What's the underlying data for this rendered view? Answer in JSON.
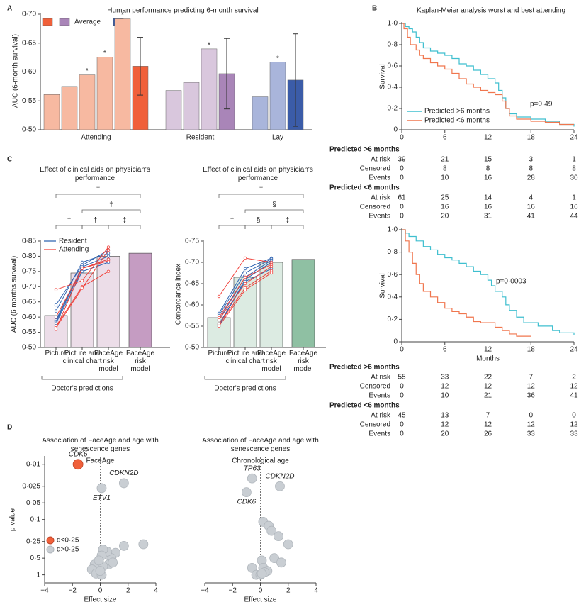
{
  "chart_data": [
    {
      "type": "grouped_bar",
      "panel": "A",
      "title": "Human performance predicting 6-month survival",
      "y_label": "AUC (6-month survival)",
      "ylim": [
        0.5,
        0.7
      ],
      "yticks": [
        {
          "value": 0.5,
          "label": "0·50"
        },
        {
          "value": 0.55,
          "label": "0·55"
        },
        {
          "value": 0.6,
          "label": "0·60"
        },
        {
          "value": 0.65,
          "label": "0·65"
        },
        {
          "value": 0.7,
          "label": "0·70"
        }
      ],
      "legend": {
        "colors": [
          "#f0603a",
          "#a985b8",
          "#3b5ca8"
        ],
        "label": "Average"
      },
      "groups": [
        {
          "name": "Attending",
          "values": [
            0.561,
            0.575,
            0.595,
            0.626,
            0.692,
            0.61
          ],
          "colors": [
            "#f7b9a1",
            "#f7b9a1",
            "#f7b9a1",
            "#f7b9a1",
            "#f7b9a1",
            "#f0603a"
          ],
          "stars": [
            null,
            null,
            "*",
            "*",
            "*",
            null
          ],
          "errors": [
            null,
            null,
            null,
            null,
            null,
            0.05
          ]
        },
        {
          "name": "Resident",
          "values": [
            0.568,
            0.582,
            0.64,
            0.597
          ],
          "colors": [
            "#d9c7dd",
            "#d9c7dd",
            "#d9c7dd",
            "#a985b8"
          ],
          "stars": [
            null,
            null,
            "*",
            null
          ],
          "errors": [
            null,
            null,
            null,
            0.061
          ]
        },
        {
          "name": "Lay",
          "values": [
            0.557,
            0.617,
            0.586
          ],
          "colors": [
            "#a9b5db",
            "#a9b5db",
            "#3b5ca8"
          ],
          "stars": [
            null,
            "*",
            null
          ],
          "errors": [
            null,
            null,
            0.08
          ]
        }
      ]
    },
    {
      "type": "step",
      "panel": "B",
      "title": "Kaplan-Meier analysis worst and best attending",
      "y_label": "Survival",
      "annotation": "p=0·49",
      "legend": "lower left",
      "xlim": [
        0,
        24
      ],
      "xticks": [
        0,
        6,
        12,
        18,
        24
      ],
      "ylim": [
        0,
        1
      ],
      "yticks": [
        0,
        {
          "value": 0.2,
          "label": "0·2"
        },
        {
          "value": 0.4,
          "label": "0·4"
        },
        {
          "value": 0.6,
          "label": "0·6"
        },
        {
          "value": 0.8,
          "label": "0·8"
        },
        {
          "value": 1,
          "label": "1·0"
        }
      ],
      "series": [
        {
          "name": "Predicted >6 months",
          "color": "#3fbfcf",
          "x": [
            0,
            0.5,
            1,
            1.5,
            2,
            2.5,
            3,
            4,
            5,
            6,
            7,
            8,
            9,
            10,
            11,
            12,
            13,
            13.5,
            14,
            14.5,
            15,
            16,
            18,
            20,
            22,
            24
          ],
          "values": [
            1,
            0.97,
            0.95,
            0.92,
            0.87,
            0.82,
            0.77,
            0.74,
            0.72,
            0.7,
            0.67,
            0.62,
            0.6,
            0.56,
            0.52,
            0.48,
            0.44,
            0.37,
            0.3,
            0.2,
            0.15,
            0.12,
            0.1,
            0.08,
            0.05,
            0.03
          ]
        },
        {
          "name": "Predicted <6 months",
          "color": "#f0764e",
          "x": [
            0,
            0.3,
            0.8,
            1.2,
            2,
            2.5,
            3,
            4,
            5,
            6,
            7,
            8,
            9,
            10,
            11,
            12,
            13,
            14,
            14.5,
            15,
            16,
            18,
            20,
            22,
            24
          ],
          "values": [
            1,
            0.95,
            0.87,
            0.8,
            0.75,
            0.7,
            0.67,
            0.63,
            0.6,
            0.57,
            0.53,
            0.48,
            0.43,
            0.4,
            0.37,
            0.35,
            0.33,
            0.27,
            0.2,
            0.13,
            0.1,
            0.08,
            0.07,
            0.05,
            0.05
          ]
        }
      ]
    },
    {
      "type": "step",
      "y_label": "Survival",
      "x_label": "Months",
      "annotation": "p=0·0003",
      "xlim": [
        0,
        24
      ],
      "xticks": [
        0,
        6,
        12,
        18,
        24
      ],
      "ylim": [
        0,
        1
      ],
      "yticks": [
        0,
        {
          "value": 0.2,
          "label": "0·2"
        },
        {
          "value": 0.4,
          "label": "0·4"
        },
        {
          "value": 0.6,
          "label": "0·6"
        },
        {
          "value": 0.8,
          "label": "0·8"
        },
        {
          "value": 1,
          "label": "1·0"
        }
      ],
      "series": [
        {
          "color": "#3fbfcf",
          "x": [
            0,
            0.5,
            1,
            2,
            3,
            4,
            5,
            6,
            7,
            8,
            9,
            10,
            11,
            12,
            12.5,
            13,
            14,
            14.5,
            15,
            16,
            17,
            19,
            21,
            22,
            24
          ],
          "values": [
            1,
            0.97,
            0.94,
            0.9,
            0.85,
            0.82,
            0.78,
            0.75,
            0.73,
            0.7,
            0.67,
            0.63,
            0.6,
            0.55,
            0.5,
            0.45,
            0.4,
            0.33,
            0.28,
            0.22,
            0.17,
            0.14,
            0.1,
            0.08,
            0.06
          ]
        },
        {
          "color": "#f0764e",
          "x": [
            0,
            0.5,
            1,
            1.5,
            2,
            2.5,
            3,
            4,
            5,
            6,
            7,
            8,
            9,
            10,
            11,
            13,
            14,
            15,
            16,
            18
          ],
          "values": [
            1,
            0.9,
            0.8,
            0.7,
            0.6,
            0.52,
            0.45,
            0.4,
            0.35,
            0.3,
            0.27,
            0.25,
            0.22,
            0.18,
            0.17,
            0.13,
            0.1,
            0.07,
            0.05,
            0.05
          ]
        }
      ]
    },
    {
      "type": "bar_line",
      "panel": "C",
      "title": "Effect of clinical aids on physician's performance",
      "y_label": "AUC (6 months survival)",
      "group_label": "Doctor's predictions",
      "categories": [
        "Picture",
        "Picture and clinical chart",
        "FaceAge risk model",
        "FaceAge risk model"
      ],
      "values": [
        0.605,
        0.745,
        0.8,
        0.81
      ],
      "colors": [
        "#ecdde8",
        "#ecdde8",
        "#ecdde8",
        "#c59cc2"
      ],
      "brackets": [
        "†",
        "†",
        "‡",
        "†",
        "†"
      ],
      "ylim": [
        0.5,
        0.85
      ],
      "yticks": [
        {
          "value": 0.5,
          "label": "0·50"
        },
        {
          "value": 0.55,
          "label": "0·55"
        },
        {
          "value": 0.6,
          "label": "0·60"
        },
        {
          "value": 0.65,
          "label": "0·65"
        },
        {
          "value": 0.7,
          "label": "0·70"
        },
        {
          "value": 0.75,
          "label": "0·75"
        },
        {
          "value": 0.8,
          "label": "0·80"
        },
        {
          "value": 0.85,
          "label": "0·85"
        }
      ],
      "lines": [
        {
          "name": "Resident",
          "color": "#2f63b0",
          "series": [
            [
              0.64,
              0.77,
              0.82
            ],
            [
              0.62,
              0.78,
              0.81
            ],
            [
              0.59,
              0.765,
              0.8
            ],
            [
              0.585,
              0.76,
              0.79
            ],
            [
              0.58,
              0.75,
              0.78
            ]
          ]
        },
        {
          "name": "Attending",
          "color": "#f0403a",
          "series": [
            [
              0.69,
              0.72,
              0.83
            ],
            [
              0.6,
              0.76,
              0.785
            ],
            [
              0.57,
              0.7,
              0.75
            ],
            [
              0.565,
              0.695,
              0.82
            ],
            [
              0.56,
              0.76,
              0.79
            ]
          ]
        }
      ]
    },
    {
      "type": "bar_line",
      "title": "Effect of clinical aids on physician's performance",
      "y_label": "Concordance index",
      "group_label": "Doctor's predictions",
      "categories": [
        "Picture",
        "Picture and clinical chart",
        "FaceAge risk model",
        "FaceAge risk model"
      ],
      "values": [
        0.57,
        0.665,
        0.7,
        0.707
      ],
      "colors": [
        "#dcebe2",
        "#dcebe2",
        "#dcebe2",
        "#8fc0a3"
      ],
      "brackets": [
        "†",
        "§",
        "‡",
        "§",
        "†"
      ],
      "ylim": [
        0.5,
        0.75
      ],
      "yticks": [
        {
          "value": 0.5,
          "label": "0·50"
        },
        {
          "value": 0.55,
          "label": "0·55"
        },
        {
          "value": 0.6,
          "label": "0·60"
        },
        {
          "value": 0.65,
          "label": "0·65"
        },
        {
          "value": 0.7,
          "label": "0·70"
        },
        {
          "value": 0.75,
          "label": "0·75"
        }
      ],
      "lines": [
        {
          "color": "#2f63b0",
          "series": [
            [
              0.58,
              0.685,
              0.71
            ],
            [
              0.575,
              0.675,
              0.708
            ],
            [
              0.565,
              0.665,
              0.705
            ],
            [
              0.55,
              0.66,
              0.7
            ],
            [
              0.555,
              0.655,
              0.685
            ]
          ]
        },
        {
          "color": "#f0403a",
          "series": [
            [
              0.62,
              0.71,
              0.7
            ],
            [
              0.57,
              0.665,
              0.695
            ],
            [
              0.565,
              0.65,
              0.69
            ],
            [
              0.555,
              0.64,
              0.68
            ],
            [
              0.55,
              0.635,
              0.675
            ]
          ]
        }
      ]
    },
    {
      "type": "scatter",
      "panel": "D",
      "title": "Association of FaceAge and age with senescence genes",
      "subtitle": "FaceAge",
      "x_label": "Effect size",
      "y_label": "p value",
      "log_y": true,
      "vline": 0,
      "xlim": [
        -4,
        4
      ],
      "xticks": [
        {
          "value": -4,
          "label": "−4"
        },
        {
          "value": -2,
          "label": "−2"
        },
        0,
        2,
        4
      ],
      "ylim": [
        1.4,
        0.0075
      ],
      "yticks": [
        {
          "value": 0.01,
          "label": "0·01"
        },
        {
          "value": 0.025,
          "label": "0·025"
        },
        {
          "value": 0.05,
          "label": "0·05"
        },
        {
          "value": 0.1,
          "label": "0·1"
        },
        {
          "value": 0.25,
          "label": "0·25"
        },
        {
          "value": 0.5,
          "label": "0·5"
        },
        1
      ],
      "series": [
        {
          "name": "q<0·25",
          "color": "#f0603a",
          "x": [
            -1.6
          ],
          "values": [
            0.01
          ],
          "labels": [
            "CDK6"
          ]
        },
        {
          "name": "q>0·25",
          "color": "#c9ced3",
          "x": [
            1.7,
            0.1,
            3.1,
            1.7,
            1.1,
            0.8,
            0.5,
            0.2,
            0.6,
            0.9,
            0.1,
            -0.4,
            -0.6,
            -0.3,
            0.1,
            0.2,
            -0.1,
            0.0
          ],
          "values": [
            0.022,
            0.027,
            0.28,
            0.3,
            0.4,
            0.5,
            0.38,
            0.35,
            0.65,
            0.6,
            0.45,
            0.65,
            0.8,
            0.95,
            1.0,
            0.7,
            0.55,
            0.85
          ],
          "labels": [
            "CDKN2D",
            "ETV1",
            null,
            null,
            null,
            null,
            null,
            null,
            null,
            null,
            null,
            null,
            null,
            null,
            null,
            null,
            null,
            null
          ]
        }
      ]
    },
    {
      "type": "scatter",
      "title": "Association of FaceAge and age with senescence genes",
      "subtitle": "Chronological age",
      "x_label": "Effect size",
      "log_y": true,
      "vline": 0,
      "xlim": [
        -4,
        4
      ],
      "xticks": [
        {
          "value": -4,
          "label": "−4"
        },
        {
          "value": -2,
          "label": "−2"
        },
        0,
        2,
        4
      ],
      "ylim": [
        1.4,
        0.0075
      ],
      "series": [
        {
          "color": "#c9ced3",
          "x": [
            -0.6,
            1.4,
            -1.0,
            0.2,
            0.6,
            0.8,
            1.3,
            2.0,
            1.0,
            1.5,
            0.1,
            -0.6,
            0.2,
            0.5,
            -0.3,
            0.0,
            0.3,
            0.1
          ],
          "values": [
            0.018,
            0.025,
            0.032,
            0.11,
            0.13,
            0.16,
            0.2,
            0.28,
            0.5,
            0.6,
            0.55,
            0.75,
            0.75,
            0.85,
            1.0,
            1.0,
            0.9,
            0.95
          ],
          "labels": [
            "TP63",
            "CDKN2D",
            "CDK6",
            null,
            null,
            null,
            null,
            null,
            null,
            null,
            null,
            null,
            null,
            null,
            null,
            null,
            null,
            null
          ]
        }
      ]
    }
  ],
  "risk_tables": [
    {
      "groups": [
        {
          "name": "Predicted >6 months",
          "rows": [
            {
              "label": "At risk",
              "values": [
                39,
                21,
                15,
                3,
                1
              ]
            },
            {
              "label": "Censored",
              "values": [
                0,
                8,
                8,
                8,
                8
              ]
            },
            {
              "label": "Events",
              "values": [
                0,
                10,
                16,
                28,
                30
              ]
            }
          ]
        },
        {
          "name": "Predicted <6 months",
          "rows": [
            {
              "label": "At risk",
              "values": [
                61,
                25,
                14,
                4,
                1
              ]
            },
            {
              "label": "Censored",
              "values": [
                0,
                16,
                16,
                16,
                16
              ]
            },
            {
              "label": "Events",
              "values": [
                0,
                20,
                31,
                41,
                44
              ]
            }
          ]
        }
      ]
    },
    {
      "groups": [
        {
          "name": "Predicted >6 months",
          "rows": [
            {
              "label": "At risk",
              "values": [
                55,
                33,
                22,
                7,
                2
              ]
            },
            {
              "label": "Censored",
              "values": [
                0,
                12,
                12,
                12,
                12
              ]
            },
            {
              "label": "Events",
              "values": [
                0,
                10,
                21,
                36,
                41
              ]
            }
          ]
        },
        {
          "name": "Predicted <6 months",
          "rows": [
            {
              "label": "At risk",
              "values": [
                45,
                13,
                7,
                0,
                0
              ]
            },
            {
              "label": "Censored",
              "values": [
                0,
                12,
                12,
                12,
                12
              ]
            },
            {
              "label": "Events",
              "values": [
                0,
                20,
                26,
                33,
                33
              ]
            }
          ]
        }
      ]
    }
  ]
}
